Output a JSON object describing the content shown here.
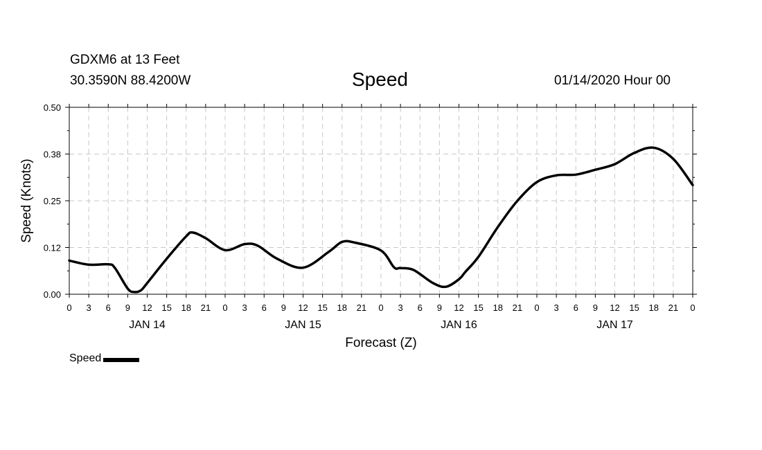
{
  "header": {
    "station": "GDXM6 at 13 Feet",
    "coords": "30.3590N 88.4200W",
    "title": "Speed",
    "runtime": "01/14/2020 Hour 00"
  },
  "legend": {
    "label": "Speed"
  },
  "chart_data": {
    "type": "line",
    "title": "Speed",
    "xlabel": "Forecast (Z)",
    "ylabel": "Speed (Knots)",
    "ylim": [
      0,
      0.5
    ],
    "yticks": [
      "0.00",
      "0.12",
      "0.25",
      "0.38",
      "0.50"
    ],
    "xlim": [
      0,
      96
    ],
    "x_unit": "forecast hour",
    "xtick_labels": [
      "0",
      "3",
      "6",
      "9",
      "12",
      "15",
      "18",
      "21",
      "0",
      "3",
      "6",
      "9",
      "12",
      "15",
      "18",
      "21",
      "0",
      "3",
      "6",
      "9",
      "12",
      "15",
      "18",
      "21",
      "0",
      "3",
      "6",
      "9",
      "12",
      "15",
      "18",
      "21",
      "0"
    ],
    "day_labels": [
      {
        "label": "JAN 14",
        "hour": 12
      },
      {
        "label": "JAN 15",
        "hour": 36
      },
      {
        "label": "JAN 16",
        "hour": 60
      },
      {
        "label": "JAN 17",
        "hour": 84
      }
    ],
    "grid": true,
    "legend_position": "bottom-left",
    "series": [
      {
        "name": "Speed",
        "x": [
          0,
          3,
          6,
          7,
          9,
          10,
          11,
          12,
          15,
          18,
          19,
          21,
          24,
          27,
          29,
          32,
          36,
          40,
          42,
          44,
          48,
          50,
          51,
          53,
          56,
          58,
          60,
          61,
          63,
          66,
          69,
          72,
          75,
          78,
          81,
          84,
          87,
          90,
          93,
          96
        ],
        "y": [
          0.09,
          0.079,
          0.08,
          0.071,
          0.015,
          0.006,
          0.01,
          0.03,
          0.095,
          0.155,
          0.165,
          0.15,
          0.118,
          0.134,
          0.13,
          0.095,
          0.071,
          0.114,
          0.14,
          0.138,
          0.117,
          0.072,
          0.07,
          0.065,
          0.03,
          0.02,
          0.04,
          0.06,
          0.1,
          0.18,
          0.25,
          0.3,
          0.318,
          0.32,
          0.333,
          0.348,
          0.378,
          0.392,
          0.362,
          0.292
        ]
      }
    ]
  }
}
